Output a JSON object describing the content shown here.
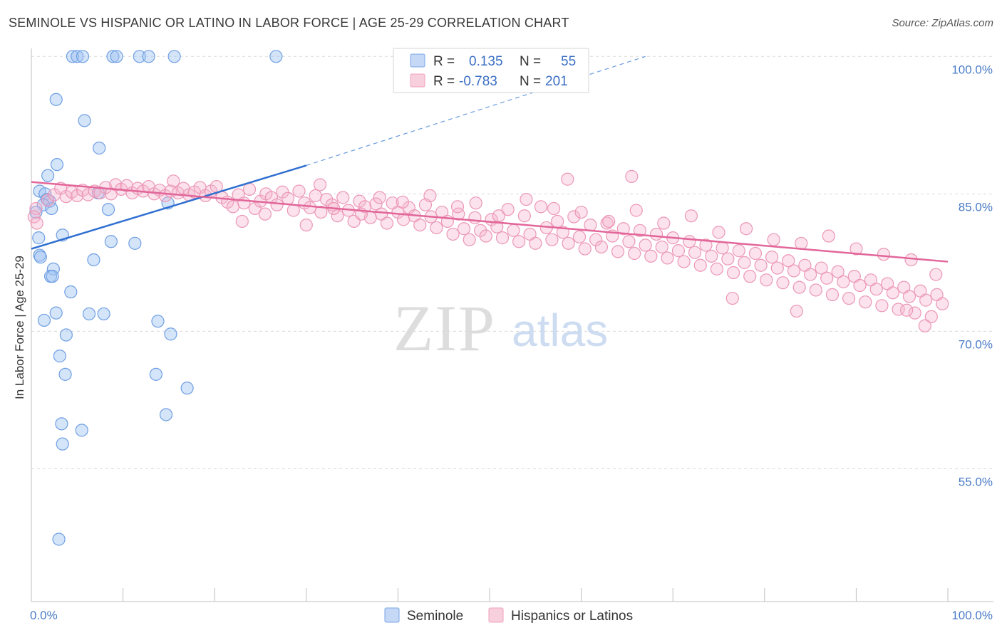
{
  "header": {
    "title": "SEMINOLE VS HISPANIC OR LATINO IN LABOR FORCE | AGE 25-29 CORRELATION CHART",
    "source": "Source: ZipAtlas.com"
  },
  "watermark": {
    "zip": "ZIP",
    "atlas": "atlas"
  },
  "legend": {
    "rows": [
      {
        "r_label": "R =",
        "r_value": "0.135",
        "n_label": "N =",
        "n_value": "55",
        "color": "#7aa6e8"
      },
      {
        "r_label": "R =",
        "r_value": "-0.783",
        "n_label": "N =",
        "n_value": "201",
        "color": "#f0a0bc"
      }
    ]
  },
  "bottom_legend": {
    "items": [
      {
        "label": "Seminole",
        "color": "#7aa6e8"
      },
      {
        "label": "Hispanics or Latinos",
        "color": "#f0a0bc"
      }
    ]
  },
  "chart_data": {
    "type": "scatter",
    "ylabel": "In Labor Force | Age 25-29",
    "xlim": [
      0,
      100
    ],
    "ylim": [
      40.5,
      101.5
    ],
    "y_ticks": [
      {
        "v": 100,
        "label": "100.0%"
      },
      {
        "v": 85,
        "label": "85.0%"
      },
      {
        "v": 70,
        "label": "70.0%"
      },
      {
        "v": 55,
        "label": "55.0%"
      }
    ],
    "x_tick_labels": [
      {
        "v": 0,
        "label": "0.0%"
      },
      {
        "v": 100,
        "label": "100.0%"
      }
    ],
    "grid": true,
    "series": [
      {
        "name": "Seminole",
        "color": "#7aa6e8",
        "trend": {
          "x0": 0,
          "y0": 79.0,
          "x1": 30,
          "y1": 88.1,
          "dash_to_x": 67,
          "dash_to_y": 100
        },
        "points": [
          [
            4.5,
            100
          ],
          [
            5,
            100
          ],
          [
            5.6,
            100
          ],
          [
            8.9,
            100
          ],
          [
            9.3,
            100
          ],
          [
            11.8,
            100
          ],
          [
            12.8,
            100
          ],
          [
            15.6,
            100
          ],
          [
            26.7,
            100
          ],
          [
            2.7,
            95.3
          ],
          [
            5.8,
            93
          ],
          [
            7.4,
            90
          ],
          [
            2.8,
            88.2
          ],
          [
            1.8,
            87
          ],
          [
            0.9,
            85.3
          ],
          [
            1.5,
            85
          ],
          [
            7.3,
            85.1
          ],
          [
            1.7,
            84.4
          ],
          [
            2.0,
            84.2
          ],
          [
            14.9,
            84
          ],
          [
            1.3,
            83.8
          ],
          [
            2.2,
            83.4
          ],
          [
            8.4,
            83.3
          ],
          [
            0.5,
            83
          ],
          [
            0.8,
            80.2
          ],
          [
            3.4,
            80.5
          ],
          [
            8.7,
            79.8
          ],
          [
            11.3,
            79.6
          ],
          [
            0.9,
            78.3
          ],
          [
            1.0,
            78.1
          ],
          [
            6.8,
            77.8
          ],
          [
            2.4,
            76.8
          ],
          [
            2.1,
            76.0
          ],
          [
            2.3,
            76.0
          ],
          [
            4.3,
            74.3
          ],
          [
            1.4,
            71.2
          ],
          [
            2.7,
            72.0
          ],
          [
            6.3,
            71.9
          ],
          [
            7.9,
            71.9
          ],
          [
            13.8,
            71.1
          ],
          [
            3.8,
            69.6
          ],
          [
            15.2,
            69.7
          ],
          [
            3.1,
            67.3
          ],
          [
            3.7,
            65.3
          ],
          [
            13.6,
            65.3
          ],
          [
            17.0,
            63.8
          ],
          [
            14.7,
            60.9
          ],
          [
            3.3,
            59.9
          ],
          [
            5.5,
            59.2
          ],
          [
            3.4,
            57.7
          ],
          [
            3.0,
            47.3
          ]
        ]
      },
      {
        "name": "Hispanics or Latinos",
        "color": "#f0a0bc",
        "trend": {
          "x0": 0,
          "y0": 86.3,
          "x1": 100,
          "y1": 77.6
        },
        "points": [
          [
            0.5,
            83.4
          ],
          [
            0.3,
            82.5
          ],
          [
            0.6,
            81.8
          ],
          [
            1.8,
            84.3
          ],
          [
            2.5,
            84.9
          ],
          [
            3.2,
            85.6
          ],
          [
            3.8,
            84.7
          ],
          [
            4.4,
            85.2
          ],
          [
            5.0,
            84.8
          ],
          [
            5.6,
            85.4
          ],
          [
            6.2,
            84.9
          ],
          [
            6.9,
            85.3
          ],
          [
            7.5,
            85.1
          ],
          [
            8.1,
            85.7
          ],
          [
            8.7,
            85.0
          ],
          [
            9.2,
            86.0
          ],
          [
            9.8,
            85.5
          ],
          [
            10.4,
            85.9
          ],
          [
            11.0,
            85.1
          ],
          [
            11.6,
            85.6
          ],
          [
            12.2,
            85.3
          ],
          [
            12.8,
            85.8
          ],
          [
            13.4,
            85.0
          ],
          [
            14.0,
            85.4
          ],
          [
            14.6,
            84.8
          ],
          [
            15.2,
            85.3
          ],
          [
            15.5,
            86.4
          ],
          [
            16.0,
            85.1
          ],
          [
            16.6,
            85.6
          ],
          [
            17.2,
            84.9
          ],
          [
            17.8,
            85.2
          ],
          [
            18.4,
            85.7
          ],
          [
            19.0,
            84.8
          ],
          [
            19.6,
            85.3
          ],
          [
            20.2,
            85.8
          ],
          [
            20.8,
            84.6
          ],
          [
            21.4,
            84.1
          ],
          [
            22.0,
            83.6
          ],
          [
            22.6,
            84.9
          ],
          [
            23.2,
            84.0
          ],
          [
            23.8,
            85.5
          ],
          [
            24.4,
            83.4
          ],
          [
            25.0,
            84.2
          ],
          [
            25.6,
            85.0
          ],
          [
            26.2,
            84.6
          ],
          [
            26.8,
            83.8
          ],
          [
            27.4,
            85.2
          ],
          [
            28.0,
            84.5
          ],
          [
            28.6,
            83.2
          ],
          [
            29.2,
            85.3
          ],
          [
            29.8,
            84.0
          ],
          [
            30.4,
            83.5
          ],
          [
            31.0,
            84.8
          ],
          [
            31.6,
            83.0
          ],
          [
            32.2,
            84.4
          ],
          [
            32.8,
            83.8
          ],
          [
            33.4,
            82.6
          ],
          [
            34.0,
            84.6
          ],
          [
            34.6,
            83.2
          ],
          [
            35.2,
            82.0
          ],
          [
            35.8,
            84.2
          ],
          [
            36.4,
            83.6
          ],
          [
            37.0,
            82.4
          ],
          [
            37.6,
            83.9
          ],
          [
            38.2,
            82.8
          ],
          [
            38.8,
            81.8
          ],
          [
            39.4,
            84.0
          ],
          [
            40.0,
            83.0
          ],
          [
            40.6,
            82.2
          ],
          [
            41.2,
            83.5
          ],
          [
            41.8,
            82.6
          ],
          [
            42.4,
            81.6
          ],
          [
            43.0,
            83.8
          ],
          [
            43.6,
            82.5
          ],
          [
            44.2,
            81.3
          ],
          [
            44.8,
            83.0
          ],
          [
            45.4,
            82.0
          ],
          [
            46.0,
            80.6
          ],
          [
            46.6,
            82.8
          ],
          [
            47.2,
            81.2
          ],
          [
            47.8,
            80.0
          ],
          [
            48.4,
            82.4
          ],
          [
            49.0,
            81.0
          ],
          [
            49.6,
            80.4
          ],
          [
            50.2,
            82.2
          ],
          [
            50.8,
            81.4
          ],
          [
            51.4,
            80.2
          ],
          [
            52.0,
            83.3
          ],
          [
            52.6,
            81.0
          ],
          [
            53.2,
            79.8
          ],
          [
            53.8,
            82.6
          ],
          [
            54.4,
            80.6
          ],
          [
            55.0,
            79.6
          ],
          [
            55.6,
            83.6
          ],
          [
            56.2,
            81.3
          ],
          [
            56.8,
            80.0
          ],
          [
            57.4,
            82.0
          ],
          [
            58.0,
            80.8
          ],
          [
            58.6,
            79.6
          ],
          [
            59.2,
            82.5
          ],
          [
            59.8,
            80.3
          ],
          [
            60.4,
            79.0
          ],
          [
            61.0,
            81.6
          ],
          [
            61.6,
            80.0
          ],
          [
            62.2,
            79.2
          ],
          [
            62.8,
            81.8
          ],
          [
            63.4,
            80.4
          ],
          [
            64.0,
            78.7
          ],
          [
            64.6,
            81.2
          ],
          [
            65.2,
            79.8
          ],
          [
            65.8,
            78.5
          ],
          [
            66.4,
            81.0
          ],
          [
            67.0,
            79.4
          ],
          [
            67.6,
            78.2
          ],
          [
            68.2,
            80.6
          ],
          [
            68.8,
            79.2
          ],
          [
            69.4,
            78.0
          ],
          [
            70.0,
            80.2
          ],
          [
            70.6,
            78.8
          ],
          [
            71.2,
            77.6
          ],
          [
            71.8,
            79.8
          ],
          [
            72.4,
            78.6
          ],
          [
            73.0,
            77.2
          ],
          [
            73.6,
            79.4
          ],
          [
            74.2,
            78.2
          ],
          [
            74.8,
            76.8
          ],
          [
            75.4,
            79.1
          ],
          [
            76.0,
            77.9
          ],
          [
            76.6,
            76.4
          ],
          [
            77.2,
            78.8
          ],
          [
            77.8,
            77.5
          ],
          [
            78.4,
            76.0
          ],
          [
            79.0,
            78.5
          ],
          [
            79.6,
            77.2
          ],
          [
            80.2,
            75.6
          ],
          [
            80.8,
            78.1
          ],
          [
            81.4,
            76.9
          ],
          [
            82.0,
            75.3
          ],
          [
            82.6,
            77.7
          ],
          [
            83.2,
            76.6
          ],
          [
            83.8,
            74.8
          ],
          [
            84.4,
            77.2
          ],
          [
            85.0,
            76.2
          ],
          [
            85.6,
            74.5
          ],
          [
            86.2,
            76.9
          ],
          [
            86.8,
            75.8
          ],
          [
            87.4,
            74.0
          ],
          [
            88.0,
            76.5
          ],
          [
            88.6,
            75.4
          ],
          [
            89.2,
            73.6
          ],
          [
            89.8,
            76.0
          ],
          [
            90.4,
            75.0
          ],
          [
            91.0,
            73.2
          ],
          [
            91.6,
            75.6
          ],
          [
            92.2,
            74.6
          ],
          [
            92.8,
            72.8
          ],
          [
            93.4,
            75.2
          ],
          [
            94.0,
            74.2
          ],
          [
            94.6,
            72.4
          ],
          [
            95.2,
            74.8
          ],
          [
            95.8,
            73.8
          ],
          [
            96.4,
            72.0
          ],
          [
            97.0,
            74.4
          ],
          [
            97.6,
            73.4
          ],
          [
            98.2,
            71.6
          ],
          [
            98.8,
            74.0
          ],
          [
            99.4,
            73.0
          ],
          [
            23.0,
            82.0
          ],
          [
            25.5,
            82.8
          ],
          [
            30.0,
            81.6
          ],
          [
            33.0,
            83.4
          ],
          [
            36.0,
            82.8
          ],
          [
            38.0,
            84.6
          ],
          [
            40.5,
            84.1
          ],
          [
            43.5,
            84.8
          ],
          [
            46.5,
            83.6
          ],
          [
            48.5,
            84.0
          ],
          [
            51.0,
            82.6
          ],
          [
            54.0,
            84.4
          ],
          [
            57.0,
            83.4
          ],
          [
            60.0,
            83.0
          ],
          [
            63.0,
            82.0
          ],
          [
            66.0,
            83.2
          ],
          [
            69.0,
            81.8
          ],
          [
            72.0,
            82.6
          ],
          [
            75.0,
            80.8
          ],
          [
            78.0,
            81.2
          ],
          [
            81.0,
            80.0
          ],
          [
            84.0,
            79.6
          ],
          [
            87.0,
            80.4
          ],
          [
            90.0,
            79.0
          ],
          [
            93.0,
            78.4
          ],
          [
            96.0,
            77.8
          ],
          [
            31.5,
            86.0
          ],
          [
            58.5,
            86.6
          ],
          [
            65.5,
            86.9
          ],
          [
            76.5,
            73.6
          ],
          [
            83.5,
            72.2
          ],
          [
            95.5,
            72.3
          ],
          [
            97.5,
            70.6
          ],
          [
            98.7,
            76.2
          ]
        ]
      }
    ]
  }
}
